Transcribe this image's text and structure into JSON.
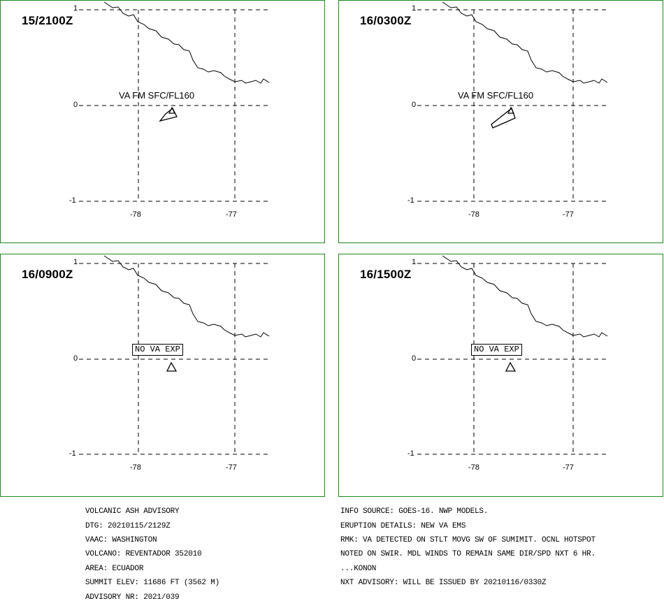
{
  "panels": [
    {
      "time": "15/2100Z",
      "lat_ticks": [
        "1",
        "0",
        "-1"
      ],
      "lon_ticks": [
        "-78",
        "-77"
      ],
      "label": "VA FM SFC/FL160",
      "ash": "small"
    },
    {
      "time": "16/0300Z",
      "lat_ticks": [
        "1",
        "0",
        "-1"
      ],
      "lon_ticks": [
        "-78",
        "-77"
      ],
      "label": "VA FM SFC/FL160",
      "ash": "large"
    },
    {
      "time": "16/0900Z",
      "lat_ticks": [
        "1",
        "0",
        "-1"
      ],
      "lon_ticks": [
        "-78",
        "-77"
      ],
      "label": "NO VA EXP",
      "ash": "none"
    },
    {
      "time": "16/1500Z",
      "lat_ticks": [
        "1",
        "0",
        "-1"
      ],
      "lon_ticks": [
        "-78",
        "-77"
      ],
      "label": "NO VA EXP",
      "ash": "none"
    }
  ],
  "advisory_left": [
    "VOLCANIC ASH ADVISORY",
    "DTG: 20210115/2129Z",
    "VAAC: WASHINGTON",
    "VOLCANO: REVENTADOR 352010",
    "AREA: ECUADOR",
    "SUMMIT ELEV: 11686 FT (3562 M)",
    "ADVISORY NR: 2021/039"
  ],
  "advisory_right": [
    "INFO SOURCE: GOES-16. NWP MODELS.",
    "ERUPTION DETAILS: NEW VA EMS",
    "RMK: VA DETECTED ON STLT MOVG SW OF SUMIMIT. OCNL HOTSPOT",
    "NOTED ON SWIR. MDL WINDS TO REMAIN SAME DIR/SPD NXT 6 HR.",
    "...KONON",
    "NXT ADVISORY: WILL BE ISSUED BY 20210116/0330Z"
  ],
  "colors": {
    "panel_border": "#1f8a1f",
    "lines": "#000000"
  },
  "icons": {
    "volcano": "volcano-triangle-icon"
  }
}
